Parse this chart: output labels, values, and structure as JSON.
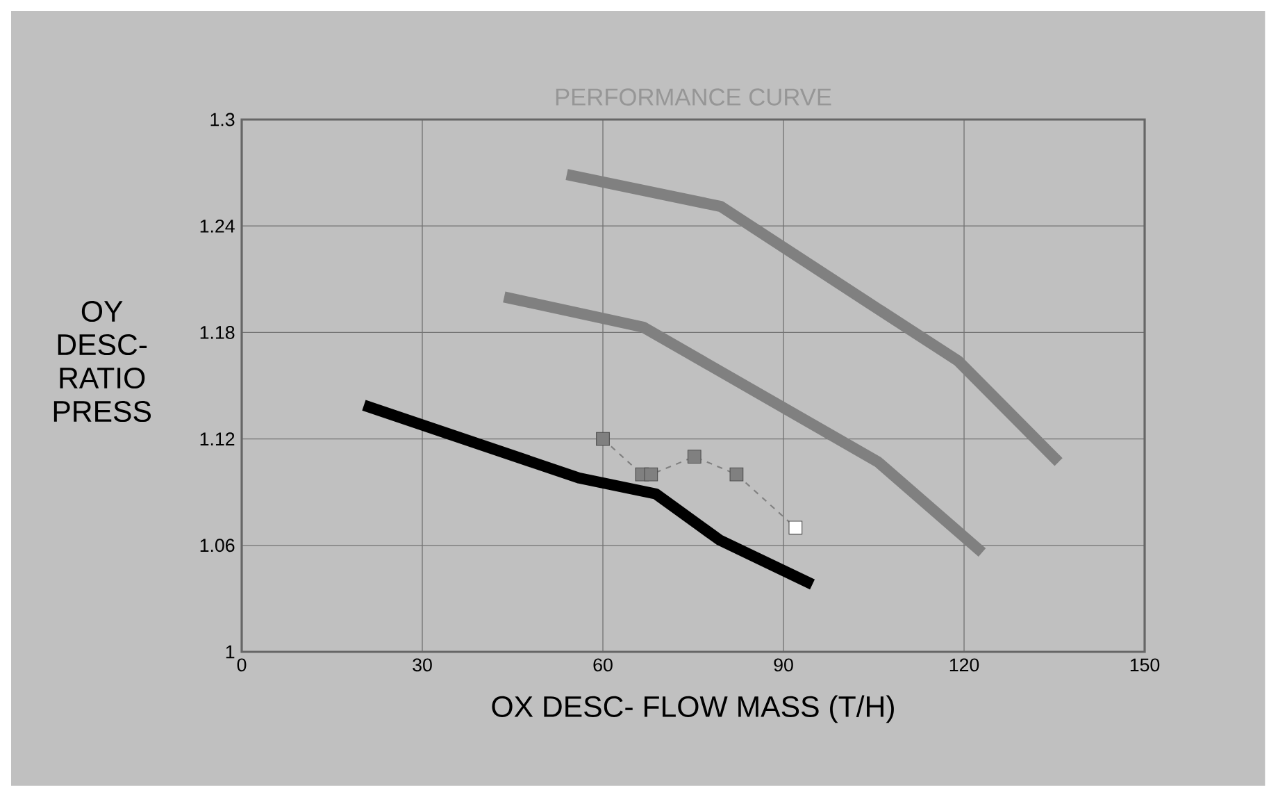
{
  "chart_data": {
    "type": "line",
    "title": "PERFORMANCE CURVE",
    "xlabel": "OX DESC- FLOW MASS (T/H)",
    "ylabel": "OY DESC- RATIO PRESS",
    "xlim": [
      0,
      150
    ],
    "xticks": [
      0,
      30,
      60,
      90,
      120,
      150
    ],
    "ylim": [
      1,
      1.3
    ],
    "yticks": [
      1,
      1.06,
      1.12,
      1.18,
      1.24,
      1.3
    ],
    "grid": true,
    "series": [
      {
        "color": "#808080",
        "x": [
          54,
          79.6,
          104,
          119,
          135.7
        ],
        "values": [
          1.269,
          1.251,
          1.197,
          1.164,
          1.107
        ]
      },
      {
        "color": "#808080",
        "x": [
          43.6,
          66.7,
          105.7,
          123
        ],
        "values": [
          1.2,
          1.183,
          1.107,
          1.056
        ]
      },
      {
        "color": "#000000",
        "x": [
          20.3,
          56,
          68.8,
          79.4,
          94.8
        ],
        "values": [
          1.139,
          1.098,
          1.089,
          1.063,
          1.038
        ]
      },
      {
        "color": "#808080",
        "line_style": "dashed",
        "marker": "square",
        "x": [
          60,
          66.5,
          68,
          75.2,
          82.2,
          92
        ],
        "values": [
          1.12,
          1.1,
          1.1,
          1.11,
          1.1,
          1.07
        ],
        "colors": [
          "#808080",
          "#808080",
          "#808080",
          "#808080",
          "#808080",
          "#ffffff"
        ]
      }
    ]
  }
}
